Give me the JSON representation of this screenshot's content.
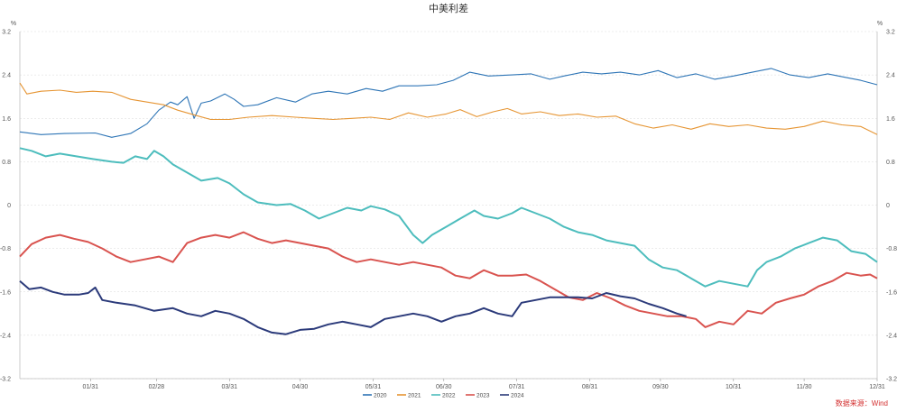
{
  "chart_data": {
    "type": "line",
    "title": "中美利差",
    "y_unit_left": "%",
    "y_unit_right": "%",
    "ylim": [
      -3.2,
      3.2
    ],
    "yticks": [
      3.2,
      2.4,
      1.6,
      0.8,
      0,
      -0.8,
      -1.6,
      -2.4,
      -3.2
    ],
    "yticks_left_labels": [
      "3.2",
      "2.4",
      "1.6",
      "0.8",
      "0",
      "-0.8",
      "-1.6",
      "-2.4",
      "-3.2"
    ],
    "yticks_right_labels": [
      "3.2",
      "2.4",
      "1.6",
      "0.8",
      "0",
      "-0.8",
      "-1.6",
      "-2.4",
      "-3.2"
    ],
    "x_day_range": [
      1,
      365
    ],
    "xticks": [
      {
        "day": 31,
        "label": "01/31"
      },
      {
        "day": 59,
        "label": "02/28"
      },
      {
        "day": 90,
        "label": "03/31"
      },
      {
        "day": 120,
        "label": "04/30"
      },
      {
        "day": 151,
        "label": "05/31"
      },
      {
        "day": 181,
        "label": "06/30"
      },
      {
        "day": 212,
        "label": "07/31"
      },
      {
        "day": 243,
        "label": "08/31"
      },
      {
        "day": 273,
        "label": "09/30"
      },
      {
        "day": 304,
        "label": "10/31"
      },
      {
        "day": 334,
        "label": "11/30"
      },
      {
        "day": 365,
        "label": "12/31"
      }
    ],
    "grid": true,
    "legend_position": "bottom",
    "source_note": "数据来源：Wind",
    "series": [
      {
        "name": "2020",
        "color": "#2e75b6",
        "points": [
          [
            1,
            1.35
          ],
          [
            10,
            1.3
          ],
          [
            20,
            1.32
          ],
          [
            33,
            1.33
          ],
          [
            40,
            1.25
          ],
          [
            48,
            1.32
          ],
          [
            55,
            1.5
          ],
          [
            60,
            1.75
          ],
          [
            65,
            1.9
          ],
          [
            68,
            1.85
          ],
          [
            72,
            2.0
          ],
          [
            75,
            1.6
          ],
          [
            78,
            1.88
          ],
          [
            82,
            1.92
          ],
          [
            88,
            2.05
          ],
          [
            92,
            1.95
          ],
          [
            96,
            1.82
          ],
          [
            102,
            1.85
          ],
          [
            110,
            1.98
          ],
          [
            118,
            1.9
          ],
          [
            125,
            2.05
          ],
          [
            132,
            2.1
          ],
          [
            140,
            2.05
          ],
          [
            148,
            2.15
          ],
          [
            155,
            2.1
          ],
          [
            162,
            2.2
          ],
          [
            170,
            2.2
          ],
          [
            178,
            2.22
          ],
          [
            185,
            2.3
          ],
          [
            192,
            2.45
          ],
          [
            200,
            2.38
          ],
          [
            210,
            2.4
          ],
          [
            218,
            2.42
          ],
          [
            226,
            2.32
          ],
          [
            232,
            2.38
          ],
          [
            240,
            2.45
          ],
          [
            248,
            2.42
          ],
          [
            256,
            2.45
          ],
          [
            264,
            2.4
          ],
          [
            272,
            2.48
          ],
          [
            280,
            2.35
          ],
          [
            288,
            2.42
          ],
          [
            296,
            2.32
          ],
          [
            304,
            2.38
          ],
          [
            312,
            2.45
          ],
          [
            320,
            2.52
          ],
          [
            328,
            2.4
          ],
          [
            336,
            2.35
          ],
          [
            344,
            2.42
          ],
          [
            352,
            2.35
          ],
          [
            358,
            2.3
          ],
          [
            365,
            2.22
          ]
        ]
      },
      {
        "name": "2021",
        "color": "#e69533",
        "points": [
          [
            1,
            2.25
          ],
          [
            4,
            2.05
          ],
          [
            10,
            2.1
          ],
          [
            18,
            2.12
          ],
          [
            25,
            2.08
          ],
          [
            32,
            2.1
          ],
          [
            40,
            2.08
          ],
          [
            48,
            1.95
          ],
          [
            55,
            1.9
          ],
          [
            62,
            1.85
          ],
          [
            68,
            1.75
          ],
          [
            72,
            1.7
          ],
          [
            76,
            1.65
          ],
          [
            82,
            1.58
          ],
          [
            90,
            1.58
          ],
          [
            98,
            1.62
          ],
          [
            108,
            1.65
          ],
          [
            118,
            1.62
          ],
          [
            126,
            1.6
          ],
          [
            134,
            1.58
          ],
          [
            142,
            1.6
          ],
          [
            150,
            1.62
          ],
          [
            158,
            1.58
          ],
          [
            166,
            1.7
          ],
          [
            174,
            1.62
          ],
          [
            182,
            1.68
          ],
          [
            188,
            1.76
          ],
          [
            195,
            1.63
          ],
          [
            202,
            1.72
          ],
          [
            208,
            1.78
          ],
          [
            214,
            1.68
          ],
          [
            222,
            1.72
          ],
          [
            230,
            1.65
          ],
          [
            238,
            1.68
          ],
          [
            246,
            1.62
          ],
          [
            254,
            1.64
          ],
          [
            262,
            1.5
          ],
          [
            270,
            1.42
          ],
          [
            278,
            1.48
          ],
          [
            286,
            1.4
          ],
          [
            294,
            1.5
          ],
          [
            302,
            1.45
          ],
          [
            310,
            1.48
          ],
          [
            318,
            1.42
          ],
          [
            326,
            1.4
          ],
          [
            334,
            1.45
          ],
          [
            342,
            1.55
          ],
          [
            350,
            1.48
          ],
          [
            358,
            1.45
          ],
          [
            365,
            1.3
          ]
        ]
      },
      {
        "name": "2022",
        "color": "#4dbdbd",
        "points": [
          [
            1,
            1.05
          ],
          [
            6,
            1.0
          ],
          [
            12,
            0.9
          ],
          [
            18,
            0.95
          ],
          [
            25,
            0.9
          ],
          [
            32,
            0.85
          ],
          [
            40,
            0.8
          ],
          [
            45,
            0.78
          ],
          [
            50,
            0.9
          ],
          [
            55,
            0.85
          ],
          [
            58,
            1.0
          ],
          [
            62,
            0.9
          ],
          [
            66,
            0.75
          ],
          [
            72,
            0.6
          ],
          [
            78,
            0.45
          ],
          [
            85,
            0.5
          ],
          [
            90,
            0.4
          ],
          [
            96,
            0.2
          ],
          [
            102,
            0.05
          ],
          [
            110,
            0.0
          ],
          [
            116,
            0.02
          ],
          [
            122,
            -0.1
          ],
          [
            128,
            -0.25
          ],
          [
            134,
            -0.15
          ],
          [
            140,
            -0.05
          ],
          [
            146,
            -0.1
          ],
          [
            150,
            -0.02
          ],
          [
            156,
            -0.08
          ],
          [
            162,
            -0.2
          ],
          [
            168,
            -0.55
          ],
          [
            172,
            -0.7
          ],
          [
            176,
            -0.55
          ],
          [
            182,
            -0.4
          ],
          [
            188,
            -0.25
          ],
          [
            194,
            -0.1
          ],
          [
            198,
            -0.2
          ],
          [
            204,
            -0.25
          ],
          [
            210,
            -0.15
          ],
          [
            214,
            -0.05
          ],
          [
            220,
            -0.15
          ],
          [
            226,
            -0.25
          ],
          [
            232,
            -0.4
          ],
          [
            238,
            -0.5
          ],
          [
            244,
            -0.55
          ],
          [
            250,
            -0.65
          ],
          [
            256,
            -0.7
          ],
          [
            262,
            -0.75
          ],
          [
            268,
            -1.0
          ],
          [
            274,
            -1.15
          ],
          [
            280,
            -1.2
          ],
          [
            286,
            -1.35
          ],
          [
            292,
            -1.5
          ],
          [
            298,
            -1.4
          ],
          [
            304,
            -1.45
          ],
          [
            310,
            -1.5
          ],
          [
            314,
            -1.2
          ],
          [
            318,
            -1.05
          ],
          [
            324,
            -0.95
          ],
          [
            330,
            -0.8
          ],
          [
            336,
            -0.7
          ],
          [
            342,
            -0.6
          ],
          [
            348,
            -0.65
          ],
          [
            354,
            -0.85
          ],
          [
            360,
            -0.9
          ],
          [
            365,
            -1.05
          ]
        ]
      },
      {
        "name": "2023",
        "color": "#d9534f",
        "points": [
          [
            1,
            -0.95
          ],
          [
            6,
            -0.72
          ],
          [
            12,
            -0.6
          ],
          [
            18,
            -0.55
          ],
          [
            24,
            -0.62
          ],
          [
            30,
            -0.68
          ],
          [
            36,
            -0.8
          ],
          [
            42,
            -0.95
          ],
          [
            48,
            -1.05
          ],
          [
            54,
            -1.0
          ],
          [
            60,
            -0.95
          ],
          [
            66,
            -1.05
          ],
          [
            72,
            -0.7
          ],
          [
            78,
            -0.6
          ],
          [
            84,
            -0.55
          ],
          [
            90,
            -0.6
          ],
          [
            96,
            -0.5
          ],
          [
            102,
            -0.62
          ],
          [
            108,
            -0.7
          ],
          [
            114,
            -0.65
          ],
          [
            120,
            -0.7
          ],
          [
            126,
            -0.75
          ],
          [
            132,
            -0.8
          ],
          [
            138,
            -0.95
          ],
          [
            144,
            -1.05
          ],
          [
            150,
            -1.0
          ],
          [
            156,
            -1.05
          ],
          [
            162,
            -1.1
          ],
          [
            168,
            -1.05
          ],
          [
            174,
            -1.1
          ],
          [
            180,
            -1.15
          ],
          [
            186,
            -1.3
          ],
          [
            192,
            -1.35
          ],
          [
            198,
            -1.2
          ],
          [
            204,
            -1.3
          ],
          [
            210,
            -1.3
          ],
          [
            216,
            -1.28
          ],
          [
            222,
            -1.4
          ],
          [
            228,
            -1.55
          ],
          [
            234,
            -1.7
          ],
          [
            240,
            -1.75
          ],
          [
            246,
            -1.62
          ],
          [
            252,
            -1.72
          ],
          [
            258,
            -1.85
          ],
          [
            264,
            -1.95
          ],
          [
            270,
            -2.0
          ],
          [
            276,
            -2.05
          ],
          [
            282,
            -2.05
          ],
          [
            288,
            -2.1
          ],
          [
            292,
            -2.25
          ],
          [
            298,
            -2.15
          ],
          [
            304,
            -2.2
          ],
          [
            310,
            -1.95
          ],
          [
            316,
            -2.0
          ],
          [
            322,
            -1.8
          ],
          [
            328,
            -1.72
          ],
          [
            334,
            -1.65
          ],
          [
            340,
            -1.5
          ],
          [
            346,
            -1.4
          ],
          [
            352,
            -1.25
          ],
          [
            358,
            -1.3
          ],
          [
            362,
            -1.28
          ],
          [
            365,
            -1.35
          ]
        ]
      },
      {
        "name": "2024",
        "color": "#2b3a7a",
        "points": [
          [
            1,
            -1.4
          ],
          [
            5,
            -1.55
          ],
          [
            10,
            -1.52
          ],
          [
            15,
            -1.6
          ],
          [
            20,
            -1.65
          ],
          [
            26,
            -1.65
          ],
          [
            30,
            -1.62
          ],
          [
            33,
            -1.52
          ],
          [
            36,
            -1.75
          ],
          [
            42,
            -1.8
          ],
          [
            50,
            -1.85
          ],
          [
            58,
            -1.95
          ],
          [
            66,
            -1.9
          ],
          [
            72,
            -2.0
          ],
          [
            78,
            -2.05
          ],
          [
            84,
            -1.95
          ],
          [
            90,
            -2.0
          ],
          [
            96,
            -2.1
          ],
          [
            102,
            -2.25
          ],
          [
            108,
            -2.35
          ],
          [
            114,
            -2.38
          ],
          [
            120,
            -2.3
          ],
          [
            126,
            -2.28
          ],
          [
            132,
            -2.2
          ],
          [
            138,
            -2.15
          ],
          [
            144,
            -2.2
          ],
          [
            150,
            -2.25
          ],
          [
            156,
            -2.1
          ],
          [
            162,
            -2.05
          ],
          [
            168,
            -2.0
          ],
          [
            174,
            -2.05
          ],
          [
            180,
            -2.15
          ],
          [
            186,
            -2.05
          ],
          [
            192,
            -2.0
          ],
          [
            198,
            -1.9
          ],
          [
            204,
            -2.0
          ],
          [
            210,
            -2.05
          ],
          [
            214,
            -1.8
          ],
          [
            220,
            -1.75
          ],
          [
            226,
            -1.7
          ],
          [
            232,
            -1.7
          ],
          [
            238,
            -1.7
          ],
          [
            244,
            -1.72
          ],
          [
            250,
            -1.62
          ],
          [
            256,
            -1.68
          ],
          [
            262,
            -1.72
          ],
          [
            268,
            -1.82
          ],
          [
            274,
            -1.9
          ],
          [
            280,
            -2.0
          ],
          [
            284,
            -2.05
          ]
        ]
      }
    ]
  }
}
